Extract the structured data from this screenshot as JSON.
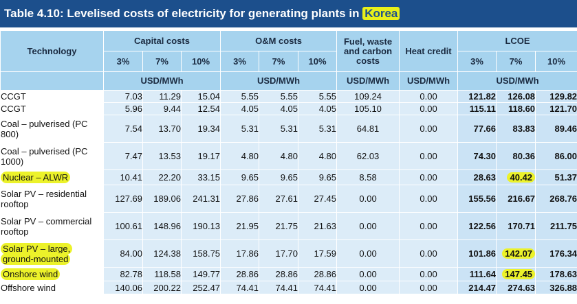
{
  "title": {
    "prefix": "Table 4.10: Levelised costs of electricity for generating plants in ",
    "country": "Korea"
  },
  "colors": {
    "header_bg": "#1c4f8c",
    "subheader_bg": "#a6d3ee",
    "cell_bg": "#dcecf8",
    "lcoe_bg": "#cbe3f5",
    "highlight": "#ecf22a"
  },
  "headers": {
    "technology": "Technology",
    "capital": "Capital costs",
    "om": "O&M costs",
    "fuel": "Fuel, waste and carbon costs",
    "heat": "Heat credit",
    "lcoe": "LCOE",
    "rate_3": "3%",
    "rate_7": "7%",
    "rate_10": "10%",
    "unit": "USD/MWh"
  },
  "rows": [
    {
      "tech": "CCGT",
      "cap3": "7.03",
      "cap7": "11.29",
      "cap10": "15.04",
      "om3": "5.55",
      "om7": "5.55",
      "om10": "5.55",
      "fuel": "109.24",
      "heat": "0.00",
      "l3": "121.82",
      "l7": "126.08",
      "l10": "129.82"
    },
    {
      "tech": "CCGT",
      "cap3": "5.96",
      "cap7": "9.44",
      "cap10": "12.54",
      "om3": "4.05",
      "om7": "4.05",
      "om10": "4.05",
      "fuel": "105.10",
      "heat": "0.00",
      "l3": "115.11",
      "l7": "118.60",
      "l10": "121.70"
    },
    {
      "tech": "Coal – pulverised (PC 800)",
      "cap3": "7.54",
      "cap7": "13.70",
      "cap10": "19.34",
      "om3": "5.31",
      "om7": "5.31",
      "om10": "5.31",
      "fuel": "64.81",
      "heat": "0.00",
      "l3": "77.66",
      "l7": "83.83",
      "l10": "89.46"
    },
    {
      "tech": "Coal – pulverised (PC 1000)",
      "cap3": "7.47",
      "cap7": "13.53",
      "cap10": "19.17",
      "om3": "4.80",
      "om7": "4.80",
      "om10": "4.80",
      "fuel": "62.03",
      "heat": "0.00",
      "l3": "74.30",
      "l7": "80.36",
      "l10": "86.00"
    },
    {
      "tech": "Nuclear – ALWR",
      "cap3": "10.41",
      "cap7": "22.20",
      "cap10": "33.15",
      "om3": "9.65",
      "om7": "9.65",
      "om10": "9.65",
      "fuel": "8.58",
      "heat": "0.00",
      "l3": "28.63",
      "l7": "40.42",
      "l10": "51.37"
    },
    {
      "tech": "Solar PV – residential rooftop",
      "cap3": "127.69",
      "cap7": "189.06",
      "cap10": "241.31",
      "om3": "27.86",
      "om7": "27.61",
      "om10": "27.45",
      "fuel": "0.00",
      "heat": "0.00",
      "l3": "155.56",
      "l7": "216.67",
      "l10": "268.76"
    },
    {
      "tech": "Solar PV – commercial rooftop",
      "cap3": "100.61",
      "cap7": "148.96",
      "cap10": "190.13",
      "om3": "21.95",
      "om7": "21.75",
      "om10": "21.63",
      "fuel": "0.00",
      "heat": "0.00",
      "l3": "122.56",
      "l7": "170.71",
      "l10": "211.75"
    },
    {
      "tech": "Solar PV – large, ground-mounted",
      "cap3": "84.00",
      "cap7": "124.38",
      "cap10": "158.75",
      "om3": "17.86",
      "om7": "17.70",
      "om10": "17.59",
      "fuel": "0.00",
      "heat": "0.00",
      "l3": "101.86",
      "l7": "142.07",
      "l10": "176.34"
    },
    {
      "tech": "Onshore wind",
      "cap3": "82.78",
      "cap7": "118.58",
      "cap10": "149.77",
      "om3": "28.86",
      "om7": "28.86",
      "om10": "28.86",
      "fuel": "0.00",
      "heat": "0.00",
      "l3": "111.64",
      "l7": "147.45",
      "l10": "178.63"
    },
    {
      "tech": "Offshore wind",
      "cap3": "140.06",
      "cap7": "200.22",
      "cap10": "252.47",
      "om3": "74.41",
      "om7": "74.41",
      "om10": "74.41",
      "fuel": "0.00",
      "heat": "0.00",
      "l3": "214.47",
      "l7": "274.63",
      "l10": "326.88"
    }
  ]
}
